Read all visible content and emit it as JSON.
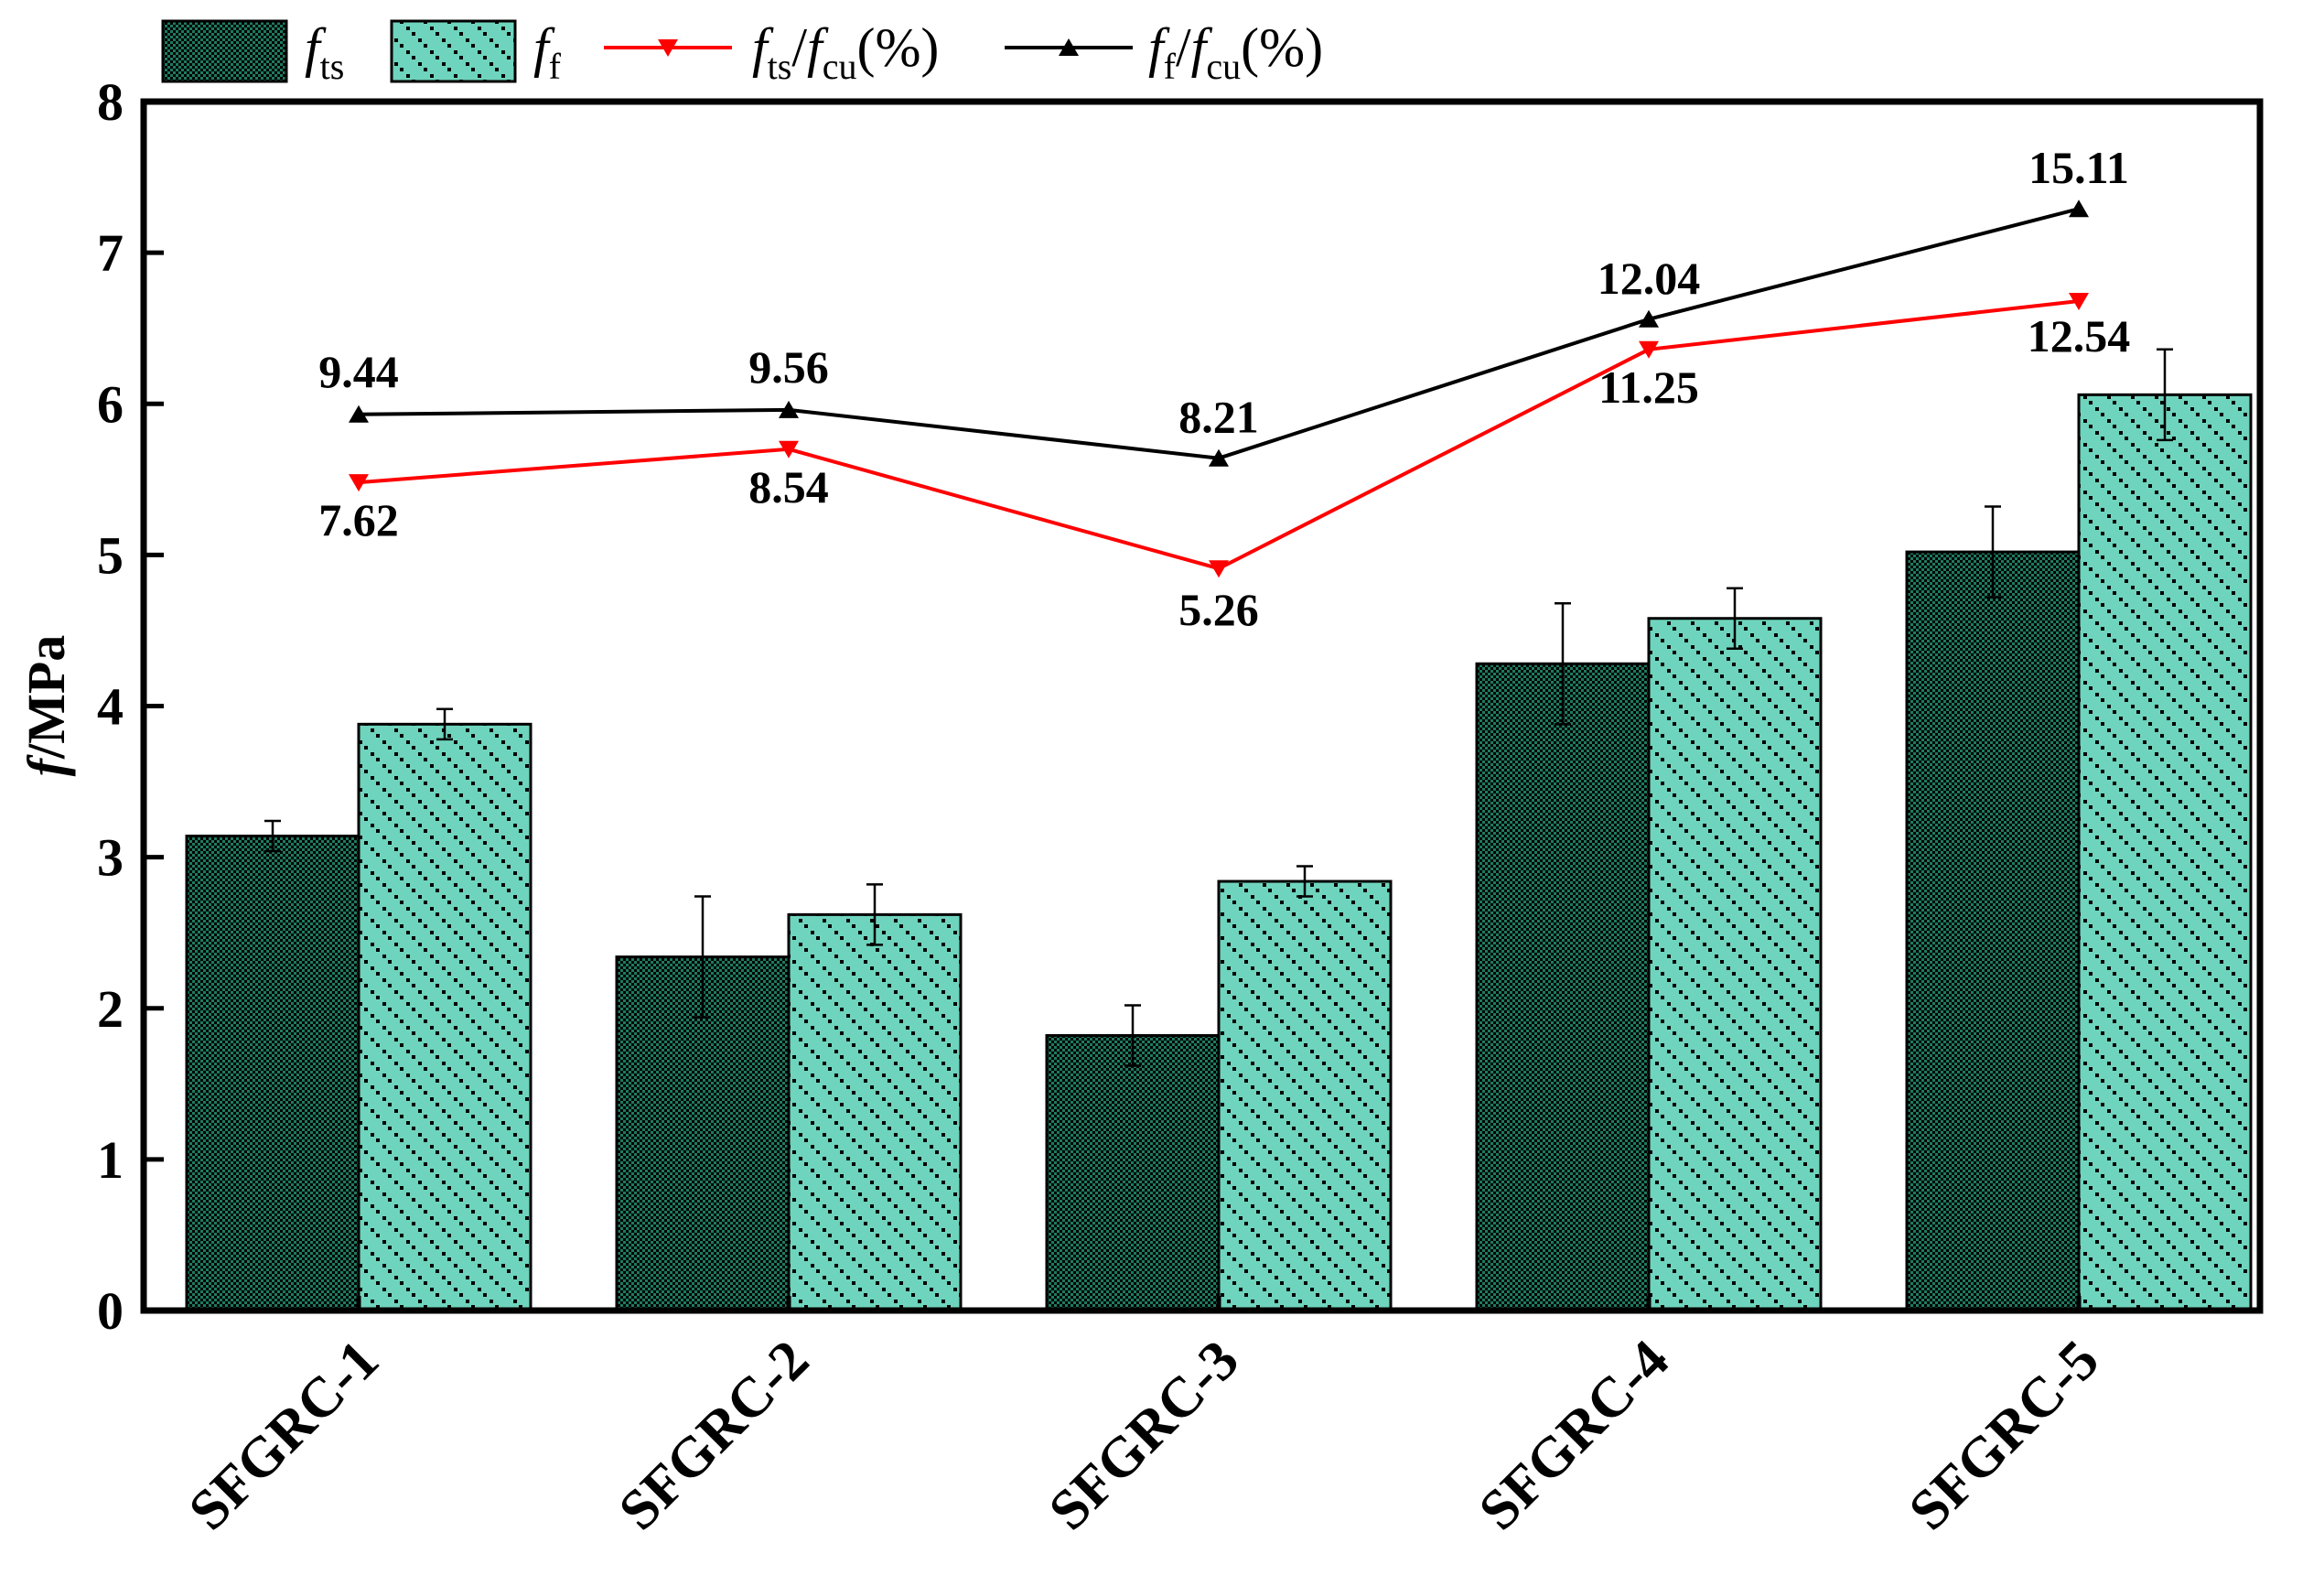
{
  "chart_data": {
    "type": "bar",
    "title": "",
    "xlabel": "",
    "ylabel": "f/MPa",
    "ylabel_parts": {
      "symbol": "f",
      "unit": "/MPa"
    },
    "ylim": [
      0,
      8
    ],
    "yticks": [
      0,
      1,
      2,
      3,
      4,
      5,
      6,
      7,
      8
    ],
    "categories": [
      "SFGRC-1",
      "SFGRC-2",
      "SFGRC-3",
      "SFGRC-4",
      "SFGRC-5"
    ],
    "series": [
      {
        "name": "f_ts",
        "kind": "bar",
        "pattern": "dense",
        "color": "#1e7a60",
        "legend": {
          "main": "f",
          "sub": "ts",
          "suffix": ""
        },
        "values": [
          3.14,
          2.34,
          1.82,
          4.28,
          5.02
        ],
        "errors": [
          0.1,
          0.4,
          0.2,
          0.4,
          0.3
        ]
      },
      {
        "name": "f_f",
        "kind": "bar",
        "pattern": "sparse",
        "color": "#6fd4bd",
        "legend": {
          "main": "f",
          "sub": "f",
          "suffix": ""
        },
        "values": [
          3.88,
          2.62,
          2.84,
          4.58,
          6.06
        ],
        "errors": [
          0.1,
          0.2,
          0.1,
          0.2,
          0.3
        ]
      },
      {
        "name": "f_ts/f_cu(%)",
        "kind": "line",
        "marker": "triangle-down",
        "color": "#ff0000",
        "legend": {
          "main": "f",
          "sub": "ts",
          "slash": "/f",
          "sub2": "cu",
          "suffix": "(%)"
        },
        "plot_values": [
          5.48,
          5.7,
          4.91,
          6.36,
          6.68
        ],
        "labels": [
          "7.62",
          "8.54",
          "5.26",
          "11.25",
          "12.54"
        ]
      },
      {
        "name": "f_f/f_cu(%)",
        "kind": "line",
        "marker": "triangle-up",
        "color": "#000000",
        "legend": {
          "main": "f",
          "sub": "f",
          "slash": "/f",
          "sub2": "cu",
          "suffix": "(%)"
        },
        "plot_values": [
          5.93,
          5.96,
          5.64,
          6.56,
          7.29
        ],
        "labels": [
          "9.44",
          "9.56",
          "8.21",
          "12.04",
          "15.11"
        ]
      }
    ]
  }
}
